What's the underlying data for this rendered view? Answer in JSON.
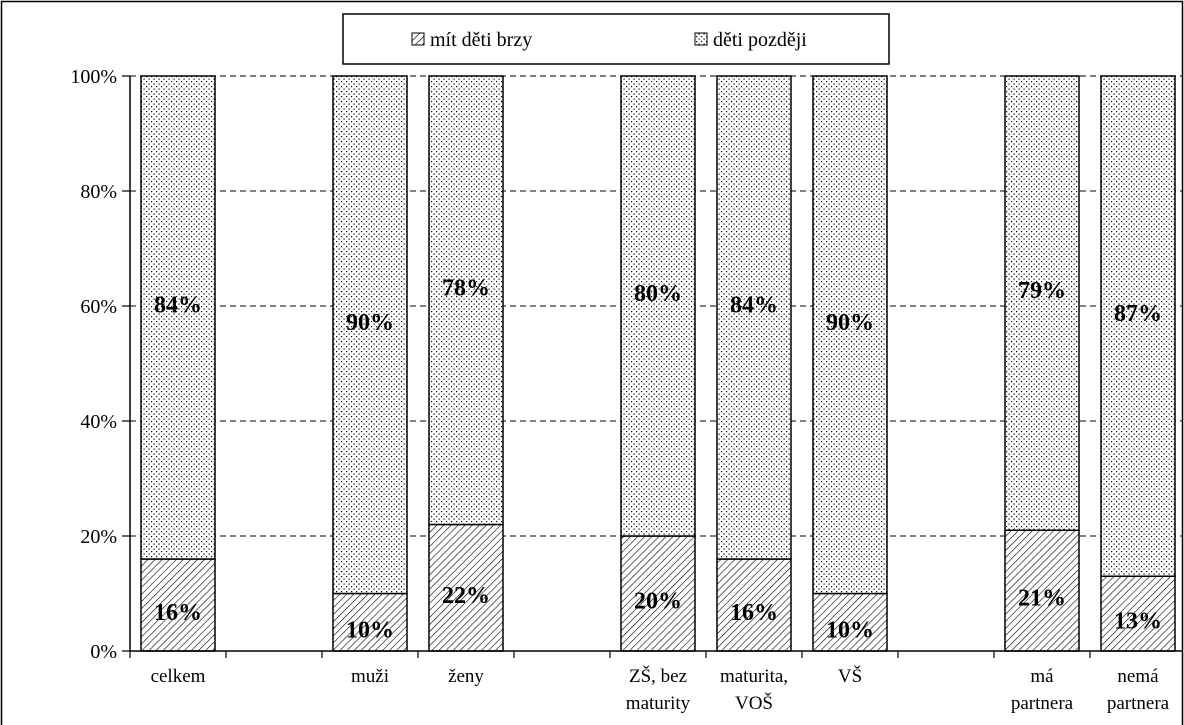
{
  "chart_data": {
    "type": "bar",
    "stacked": true,
    "percent": true,
    "categories": [
      [
        "celkem"
      ],
      [
        "muži"
      ],
      [
        "ženy"
      ],
      [
        "ZŠ, bez",
        "maturity"
      ],
      [
        "maturita,",
        "VOŠ"
      ],
      [
        "VŠ"
      ],
      [
        "má",
        "partnera"
      ],
      [
        "nemá",
        "partnera"
      ]
    ],
    "series": [
      {
        "name": "mít děti brzy",
        "pattern": "diagonal-hatch",
        "values": [
          16,
          10,
          22,
          20,
          16,
          10,
          21,
          13
        ],
        "labels": [
          "16%",
          "10%",
          "22%",
          "20%",
          "16%",
          "10%",
          "21%",
          "13%"
        ]
      },
      {
        "name": "děti později",
        "pattern": "dots",
        "values": [
          84,
          90,
          78,
          80,
          84,
          90,
          79,
          87
        ],
        "labels": [
          "84%",
          "90%",
          "78%",
          "80%",
          "84%",
          "90%",
          "79%",
          "87%"
        ]
      }
    ],
    "y_ticks": [
      "0%",
      "20%",
      "40%",
      "60%",
      "80%",
      "100%"
    ],
    "ylim": [
      0,
      100
    ],
    "grid": true,
    "legend_position": "top",
    "colors": {
      "bar_stroke": "#000000",
      "fill_background": "#ffffff",
      "grid": "#000000"
    }
  }
}
